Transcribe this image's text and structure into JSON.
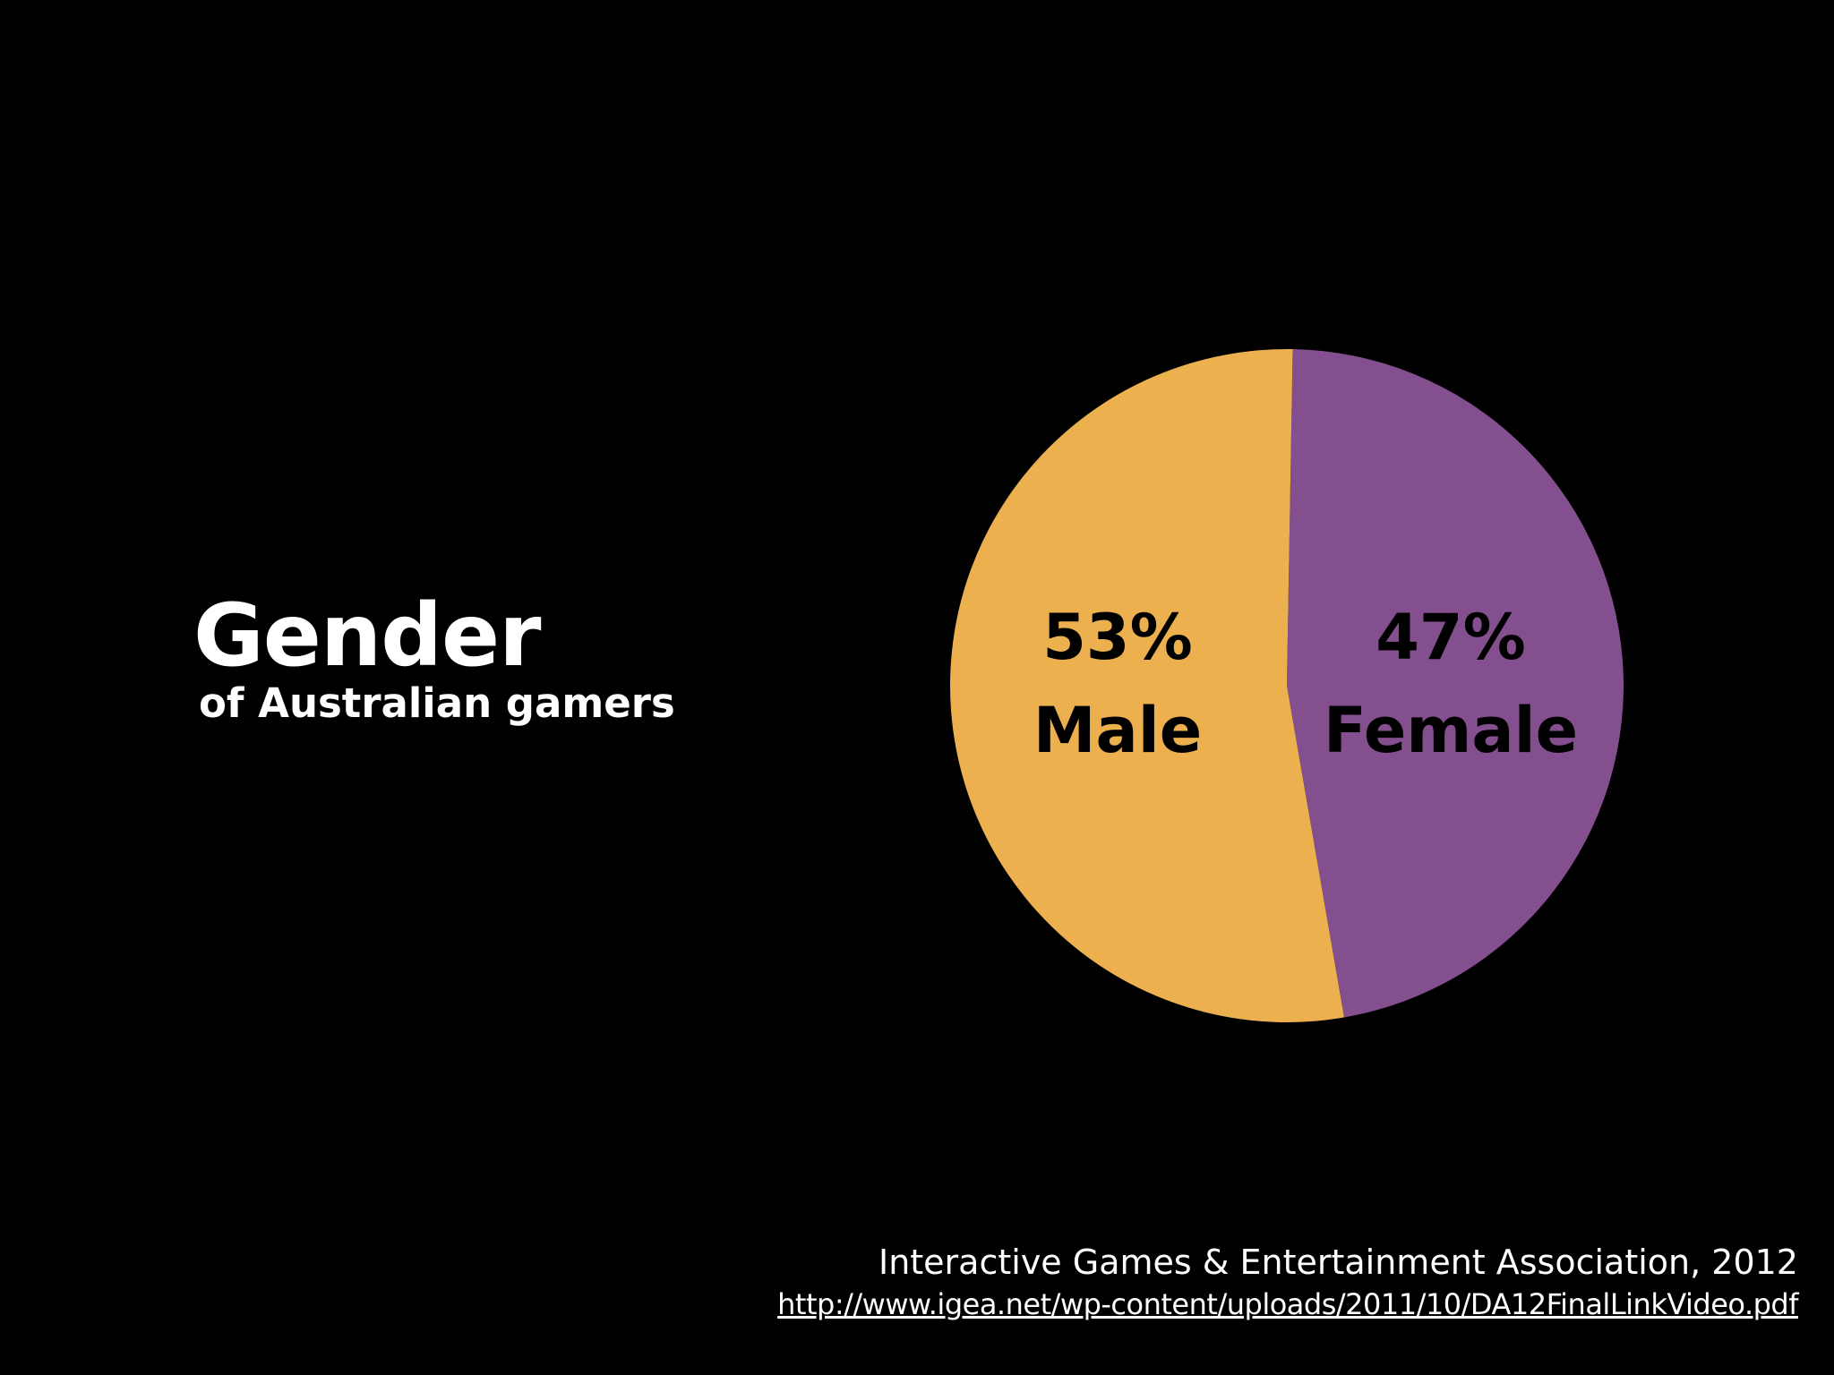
{
  "heading": {
    "title": "Gender",
    "subtitle": "of Australian gamers"
  },
  "source": {
    "citation": "Interactive Games & Entertainment Association, 2012",
    "url": "http://www.igea.net/wp-content/uploads/2011/10/DA12FinalLinkVideo.pdf"
  },
  "colors": {
    "background": "#000000",
    "male": "#EDB04F",
    "female": "#844F8E"
  },
  "chart_data": {
    "type": "pie",
    "title": "Gender",
    "subtitle": "of Australian gamers",
    "slices": [
      {
        "category": "Male",
        "value": 53,
        "value_label": "53%",
        "color": "#EDB04F"
      },
      {
        "category": "Female",
        "value": 47,
        "value_label": "47%",
        "color": "#844F8E"
      }
    ],
    "unit": "%",
    "legend": "none"
  }
}
